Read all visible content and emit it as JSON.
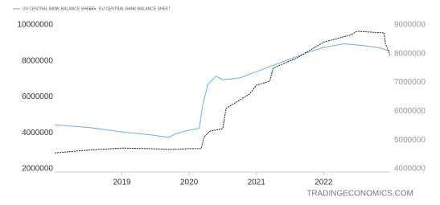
{
  "chart_data": {
    "type": "line",
    "watermark": "TRADINGECONOMICS.COM",
    "legend": "top-left",
    "xlim": [
      2018.0,
      2022.99
    ],
    "xticks": [
      2019,
      2020,
      2021,
      2022
    ],
    "ylim": [
      2000000,
      10000000
    ],
    "yticks": [
      2000000,
      4000000,
      6000000,
      8000000,
      10000000
    ],
    "y2lim": [
      4000000,
      9000000
    ],
    "y2ticks": [
      4000000,
      5000000,
      6000000,
      7000000,
      8000000,
      9000000
    ],
    "grid": false,
    "series": [
      {
        "name": "US CENTRAL BANK BALANCE SHEET",
        "color": "#6aaee8",
        "x": [
          2018.0,
          2018.5,
          2019.0,
          2019.4,
          2019.7,
          2019.8,
          2020.0,
          2020.15,
          2020.2,
          2020.28,
          2020.4,
          2020.5,
          2020.75,
          2021.0,
          2021.25,
          2021.5,
          2021.75,
          2022.0,
          2022.3,
          2022.6,
          2022.8,
          2022.99
        ],
        "values": [
          4450000,
          4300000,
          4050000,
          3900000,
          3750000,
          3950000,
          4150000,
          4250000,
          5500000,
          6700000,
          7150000,
          6950000,
          7050000,
          7400000,
          7750000,
          8100000,
          8450000,
          8750000,
          8950000,
          8850000,
          8750000,
          8550000
        ]
      },
      {
        "name": "EU CENTRAL BANK BALANCE SHEET",
        "color": "#222222",
        "axis": "y2",
        "x": [
          2018.0,
          2018.5,
          2019.0,
          2019.4,
          2019.7,
          2019.8,
          2020.0,
          2020.18,
          2020.22,
          2020.3,
          2020.5,
          2020.55,
          2020.9,
          2021.0,
          2021.2,
          2021.25,
          2021.6,
          2022.0,
          2022.4,
          2022.5,
          2022.9,
          2022.92,
          2022.99
        ],
        "values": [
          4550000,
          4650000,
          4720000,
          4700000,
          4680000,
          4680000,
          4700000,
          4700000,
          5100000,
          5300000,
          5400000,
          6100000,
          6600000,
          6900000,
          7050000,
          7500000,
          7850000,
          8400000,
          8650000,
          8780000,
          8720000,
          8350000,
          7950000
        ]
      }
    ]
  }
}
